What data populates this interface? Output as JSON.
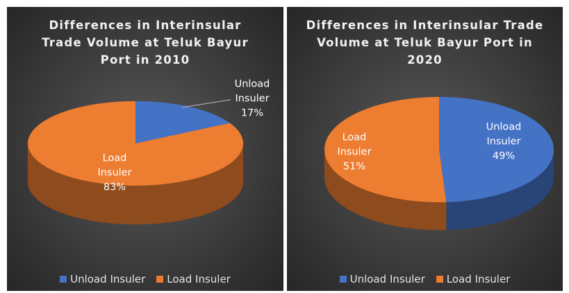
{
  "chart_data": [
    {
      "type": "pie3d",
      "title": "Differences in Interinsular Trade Volume at Teluk Bayur Port in 2010",
      "categories": [
        "Unload Insuler",
        "Load Insuler"
      ],
      "values": [
        17,
        83
      ],
      "value_labels": [
        "17%",
        "83%"
      ],
      "colors": [
        "#4472c4",
        "#ed7d31"
      ],
      "legend": "bottom"
    },
    {
      "type": "pie3d",
      "title": "Differences in Interinsular Trade Volume at Teluk Bayur Port in 2020",
      "categories": [
        "Unload Insuler",
        "Load Insuler"
      ],
      "values": [
        49,
        51
      ],
      "value_labels": [
        "49%",
        "51%"
      ],
      "colors": [
        "#4472c4",
        "#ed7d31"
      ],
      "legend": "bottom"
    }
  ]
}
